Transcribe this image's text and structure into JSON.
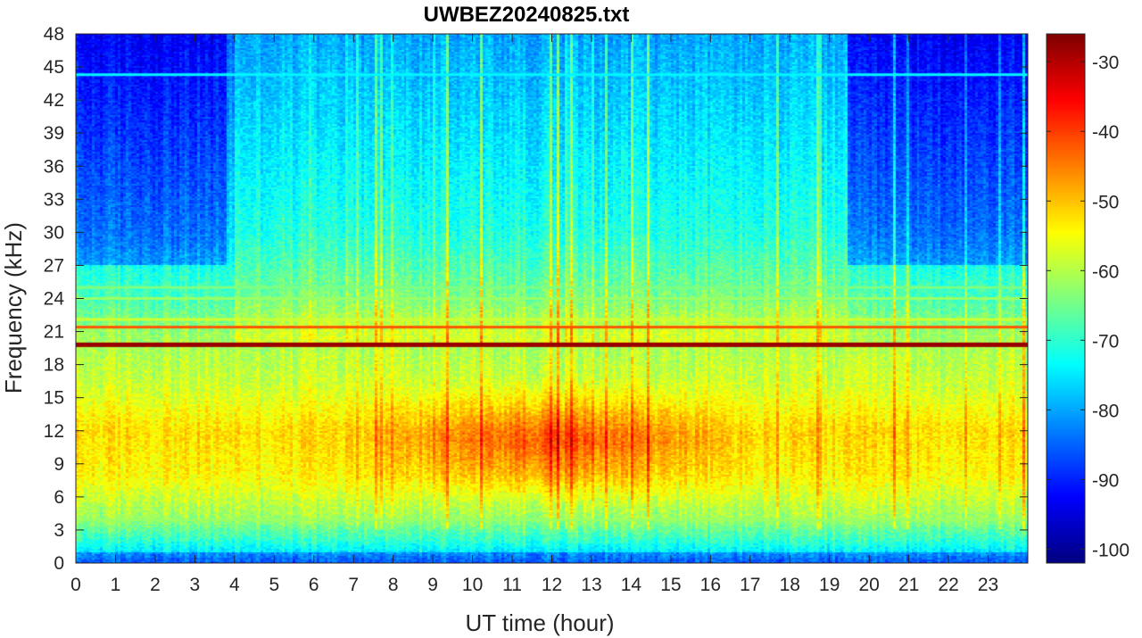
{
  "chart_data": {
    "type": "heatmap",
    "title": "UWBEZ20240825.txt",
    "xlabel": "UT time (hour)",
    "ylabel": "Frequency (kHz)",
    "xlim": [
      0,
      24
    ],
    "ylim": [
      0,
      48
    ],
    "x_ticks": [
      0,
      1,
      2,
      3,
      4,
      5,
      6,
      7,
      8,
      9,
      10,
      11,
      12,
      13,
      14,
      15,
      16,
      17,
      18,
      19,
      20,
      21,
      22,
      23
    ],
    "y_ticks": [
      0,
      3,
      6,
      9,
      12,
      15,
      18,
      21,
      24,
      27,
      30,
      33,
      36,
      39,
      42,
      45,
      48
    ],
    "colorbar": {
      "colormap": "jet",
      "clim": [
        -102,
        -26
      ],
      "ticks": [
        -100,
        -90,
        -80,
        -70,
        -60,
        -50,
        -40,
        -30
      ]
    },
    "tonal_lines_khz": [
      {
        "freq": 19.8,
        "level": -28
      },
      {
        "freq": 21.4,
        "level": -42
      },
      {
        "freq": 22.1,
        "level": -58
      },
      {
        "freq": 24.0,
        "level": -62
      },
      {
        "freq": 25.0,
        "level": -64
      },
      {
        "freq": 3.9,
        "level": -62
      },
      {
        "freq": 44.3,
        "level": -74
      }
    ],
    "background_profile": [
      {
        "freq": 0,
        "level": -80
      },
      {
        "freq": 2,
        "level": -70
      },
      {
        "freq": 4,
        "level": -62
      },
      {
        "freq": 8,
        "level": -54
      },
      {
        "freq": 12,
        "level": -52
      },
      {
        "freq": 16,
        "level": -58
      },
      {
        "freq": 19,
        "level": -60
      },
      {
        "freq": 21,
        "level": -62
      },
      {
        "freq": 24,
        "level": -68
      },
      {
        "freq": 30,
        "level": -75
      },
      {
        "freq": 40,
        "level": -80
      },
      {
        "freq": 48,
        "level": -84
      }
    ],
    "daytime_enhancement": {
      "start_hour": 6.5,
      "end_hour": 17.5,
      "peak_hour": 12,
      "freq_range": [
        5,
        17
      ],
      "boost_db": 10
    },
    "night_quiet_hours": [
      [
        0,
        3.8
      ],
      [
        19.5,
        24
      ]
    ]
  }
}
